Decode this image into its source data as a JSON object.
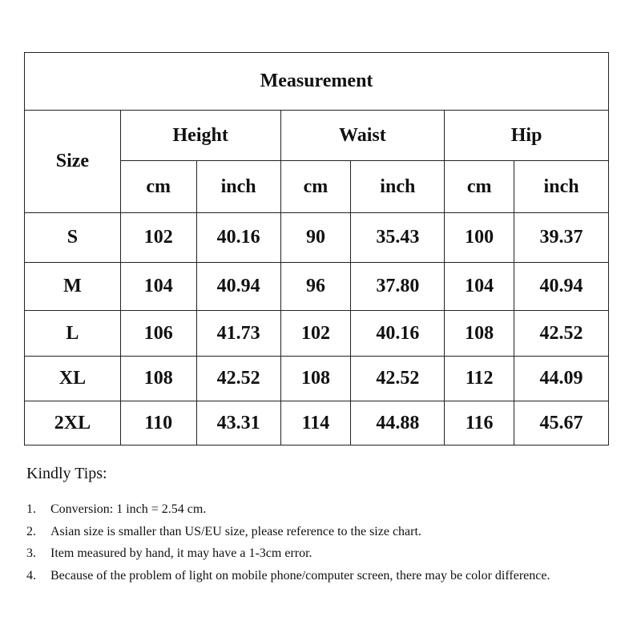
{
  "table": {
    "title": "Measurement",
    "size_header": "Size",
    "groups": [
      "Height",
      "Waist",
      "Hip"
    ],
    "units": [
      "cm",
      "inch",
      "cm",
      "inch",
      "cm",
      "inch"
    ],
    "rows": [
      [
        "S",
        "102",
        "40.16",
        "90",
        "35.43",
        "100",
        "39.37"
      ],
      [
        "M",
        "104",
        "40.94",
        "96",
        "37.80",
        "104",
        "40.94"
      ],
      [
        "L",
        "106",
        "41.73",
        "102",
        "40.16",
        "108",
        "42.52"
      ],
      [
        "XL",
        "108",
        "42.52",
        "108",
        "42.52",
        "112",
        "44.09"
      ],
      [
        "2XL",
        "110",
        "43.31",
        "114",
        "44.88",
        "116",
        "45.67"
      ]
    ]
  },
  "tips": {
    "heading": "Kindly Tips:",
    "items": [
      {
        "n": "1.",
        "text": "Conversion: 1 inch = 2.54 cm."
      },
      {
        "n": "2.",
        "text": "Asian size is smaller than US/EU size, please reference to the size chart."
      },
      {
        "n": "3.",
        "text": "Item measured by hand, it may have a 1-3cm error."
      },
      {
        "n": "4.",
        "text": "Because of the problem of light on mobile phone/computer screen, there may be color difference."
      }
    ]
  }
}
